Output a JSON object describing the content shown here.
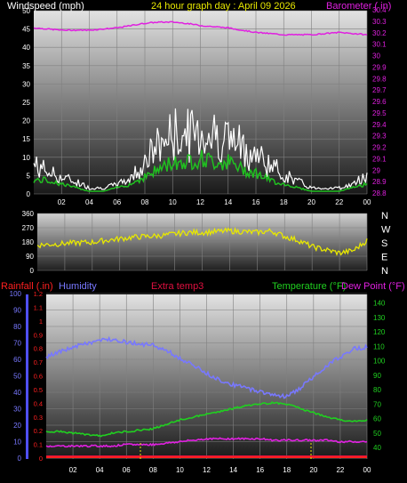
{
  "header": {
    "title": "24 hour graph day : April 09 2026",
    "windspeed_label": "Windspeed (mph)",
    "barometer_label": "Barometer ( in)"
  },
  "colors": {
    "barometer": "#e020e0",
    "wind_gust": "#ffffff",
    "wind_avg": "#20c020",
    "wind_light": "#a8f0a8",
    "direction": "#e8e800",
    "humidity": "#7878ff",
    "temperature": "#20d020",
    "dewpoint": "#e020e0",
    "rainfall": "#ff2020",
    "extra_temp": "#e01040",
    "title": "#e8e800",
    "grid": "#808080"
  },
  "lower_labels": {
    "rainfall": "Rainfall (.in)",
    "humidity": "Humidity",
    "extra_temp": "Extra temp3",
    "temperature": "Temperature (°F)",
    "dew_point": "Dew Point (°F)"
  },
  "chart_data": [
    {
      "type": "line",
      "title": "24 hour graph day : April 09 2026",
      "xlabels": [
        "02",
        "04",
        "06",
        "08",
        "10",
        "12",
        "14",
        "16",
        "18",
        "20",
        "22",
        "00"
      ],
      "left_axis": {
        "label": "Windspeed (mph)",
        "ticks": [
          "0",
          "5",
          "10",
          "15",
          "20",
          "25",
          "30",
          "35",
          "40",
          "45",
          "50"
        ],
        "ylim": [
          0,
          50
        ]
      },
      "right_axis": {
        "label": "Barometer ( in)",
        "ticks": [
          "28.8",
          "28.9",
          "29",
          "29.1",
          "29.2",
          "29.3",
          "29.4",
          "29.5",
          "29.6",
          "29.7",
          "29.8",
          "29.9",
          "30",
          "30.1",
          "30.2",
          "30.3",
          "30.4"
        ],
        "ylim": [
          28.8,
          30.4
        ]
      },
      "x": [
        0,
        1,
        2,
        3,
        4,
        5,
        6,
        7,
        8,
        9,
        10,
        11,
        12,
        13,
        14,
        15,
        16,
        17,
        18,
        19,
        20,
        21,
        22,
        23,
        24
      ],
      "series": [
        {
          "name": "Barometer",
          "axis": "right",
          "values": [
            30.25,
            30.24,
            30.23,
            30.23,
            30.23,
            30.24,
            30.25,
            30.27,
            30.29,
            30.3,
            30.3,
            30.29,
            30.27,
            30.26,
            30.25,
            30.23,
            30.21,
            30.2,
            30.19,
            30.19,
            30.19,
            30.2,
            30.21,
            30.2,
            30.19
          ]
        },
        {
          "name": "Wind gust",
          "axis": "left",
          "values": [
            8,
            6,
            4,
            3,
            1,
            1,
            2,
            4,
            9,
            14,
            17,
            17,
            18,
            17,
            16,
            13,
            11,
            8,
            5,
            3,
            1,
            1,
            1,
            2,
            5
          ]
        },
        {
          "name": "Wind average",
          "axis": "left",
          "values": [
            3,
            3,
            2,
            1,
            0,
            0,
            1,
            2,
            4,
            6,
            8,
            8,
            9,
            8,
            8,
            6,
            5,
            3,
            2,
            1,
            0,
            0,
            0,
            1,
            2
          ]
        }
      ]
    },
    {
      "type": "line",
      "left_axis": {
        "ticks": [
          "0",
          "90",
          "180",
          "270",
          "360"
        ],
        "ylim": [
          0,
          360
        ]
      },
      "right_axis": {
        "ticks": [
          "N",
          "W",
          "S",
          "E",
          "N"
        ]
      },
      "x": [
        0,
        1,
        2,
        3,
        4,
        5,
        6,
        7,
        8,
        9,
        10,
        11,
        12,
        13,
        14,
        15,
        16,
        17,
        18,
        19,
        20,
        21,
        22,
        23,
        24
      ],
      "series": [
        {
          "name": "Wind direction",
          "values": [
            160,
            165,
            170,
            175,
            178,
            190,
            200,
            210,
            215,
            220,
            230,
            240,
            240,
            245,
            250,
            245,
            240,
            250,
            215,
            190,
            150,
            130,
            110,
            125,
            190
          ]
        }
      ]
    },
    {
      "type": "line",
      "left_axes": [
        {
          "label": "Humidity",
          "ticks": [
            "0",
            "10",
            "20",
            "30",
            "40",
            "50",
            "60",
            "70",
            "80",
            "90",
            "100"
          ],
          "ylim": [
            0,
            100
          ]
        },
        {
          "label": "Rainfall (.in)",
          "ticks": [
            "0",
            "0.1",
            "0.2",
            "0.3",
            "0.4",
            "0.5",
            "0.6",
            "0.7",
            "0.8",
            "0.9",
            "1",
            "1.1",
            "1.2"
          ],
          "ylim": [
            0,
            1.2
          ]
        }
      ],
      "right_axis": {
        "label": "Temperature (°F)",
        "ticks": [
          "40",
          "50",
          "60",
          "70",
          "80",
          "90",
          "100",
          "110",
          "120",
          "130",
          "140"
        ],
        "ylim": [
          32,
          146
        ]
      },
      "x": [
        0,
        1,
        2,
        3,
        4,
        5,
        6,
        7,
        8,
        9,
        10,
        11,
        12,
        13,
        14,
        15,
        16,
        17,
        18,
        19,
        20,
        21,
        22,
        23,
        24
      ],
      "series": [
        {
          "name": "Humidity",
          "axis": "humidity",
          "values": [
            62,
            65,
            68,
            70,
            72,
            73,
            71,
            70,
            69,
            66,
            61,
            57,
            52,
            48,
            45,
            43,
            41,
            39,
            38,
            43,
            50,
            57,
            62,
            67,
            68
          ]
        },
        {
          "name": "Temperature",
          "axis": "temperature",
          "values": [
            51,
            51,
            50,
            49,
            48,
            50,
            51,
            52,
            53,
            56,
            59,
            61,
            63,
            65,
            67,
            69,
            70,
            71,
            70,
            67,
            64,
            61,
            59,
            58,
            59
          ]
        },
        {
          "name": "Dew Point",
          "axis": "temperature",
          "values": [
            41,
            41,
            41,
            41,
            41,
            41,
            42,
            42,
            42,
            43,
            44,
            45,
            46,
            46,
            46,
            46,
            46,
            45,
            45,
            45,
            45,
            45,
            44,
            44,
            44
          ]
        },
        {
          "name": "Extra temp3",
          "axis": "temperature",
          "values": [
            34,
            34,
            34,
            34,
            34,
            34,
            34,
            34,
            34,
            34,
            34,
            34,
            34,
            34,
            34,
            34,
            34,
            34,
            34,
            34,
            34,
            34,
            34,
            34,
            34
          ]
        },
        {
          "name": "Rainfall",
          "axis": "rainfall",
          "values": [
            0,
            0,
            0,
            0,
            0,
            0,
            0,
            0,
            0,
            0,
            0,
            0,
            0,
            0,
            0,
            0,
            0,
            0,
            0,
            0,
            0,
            0,
            0,
            0,
            0
          ]
        }
      ]
    }
  ]
}
